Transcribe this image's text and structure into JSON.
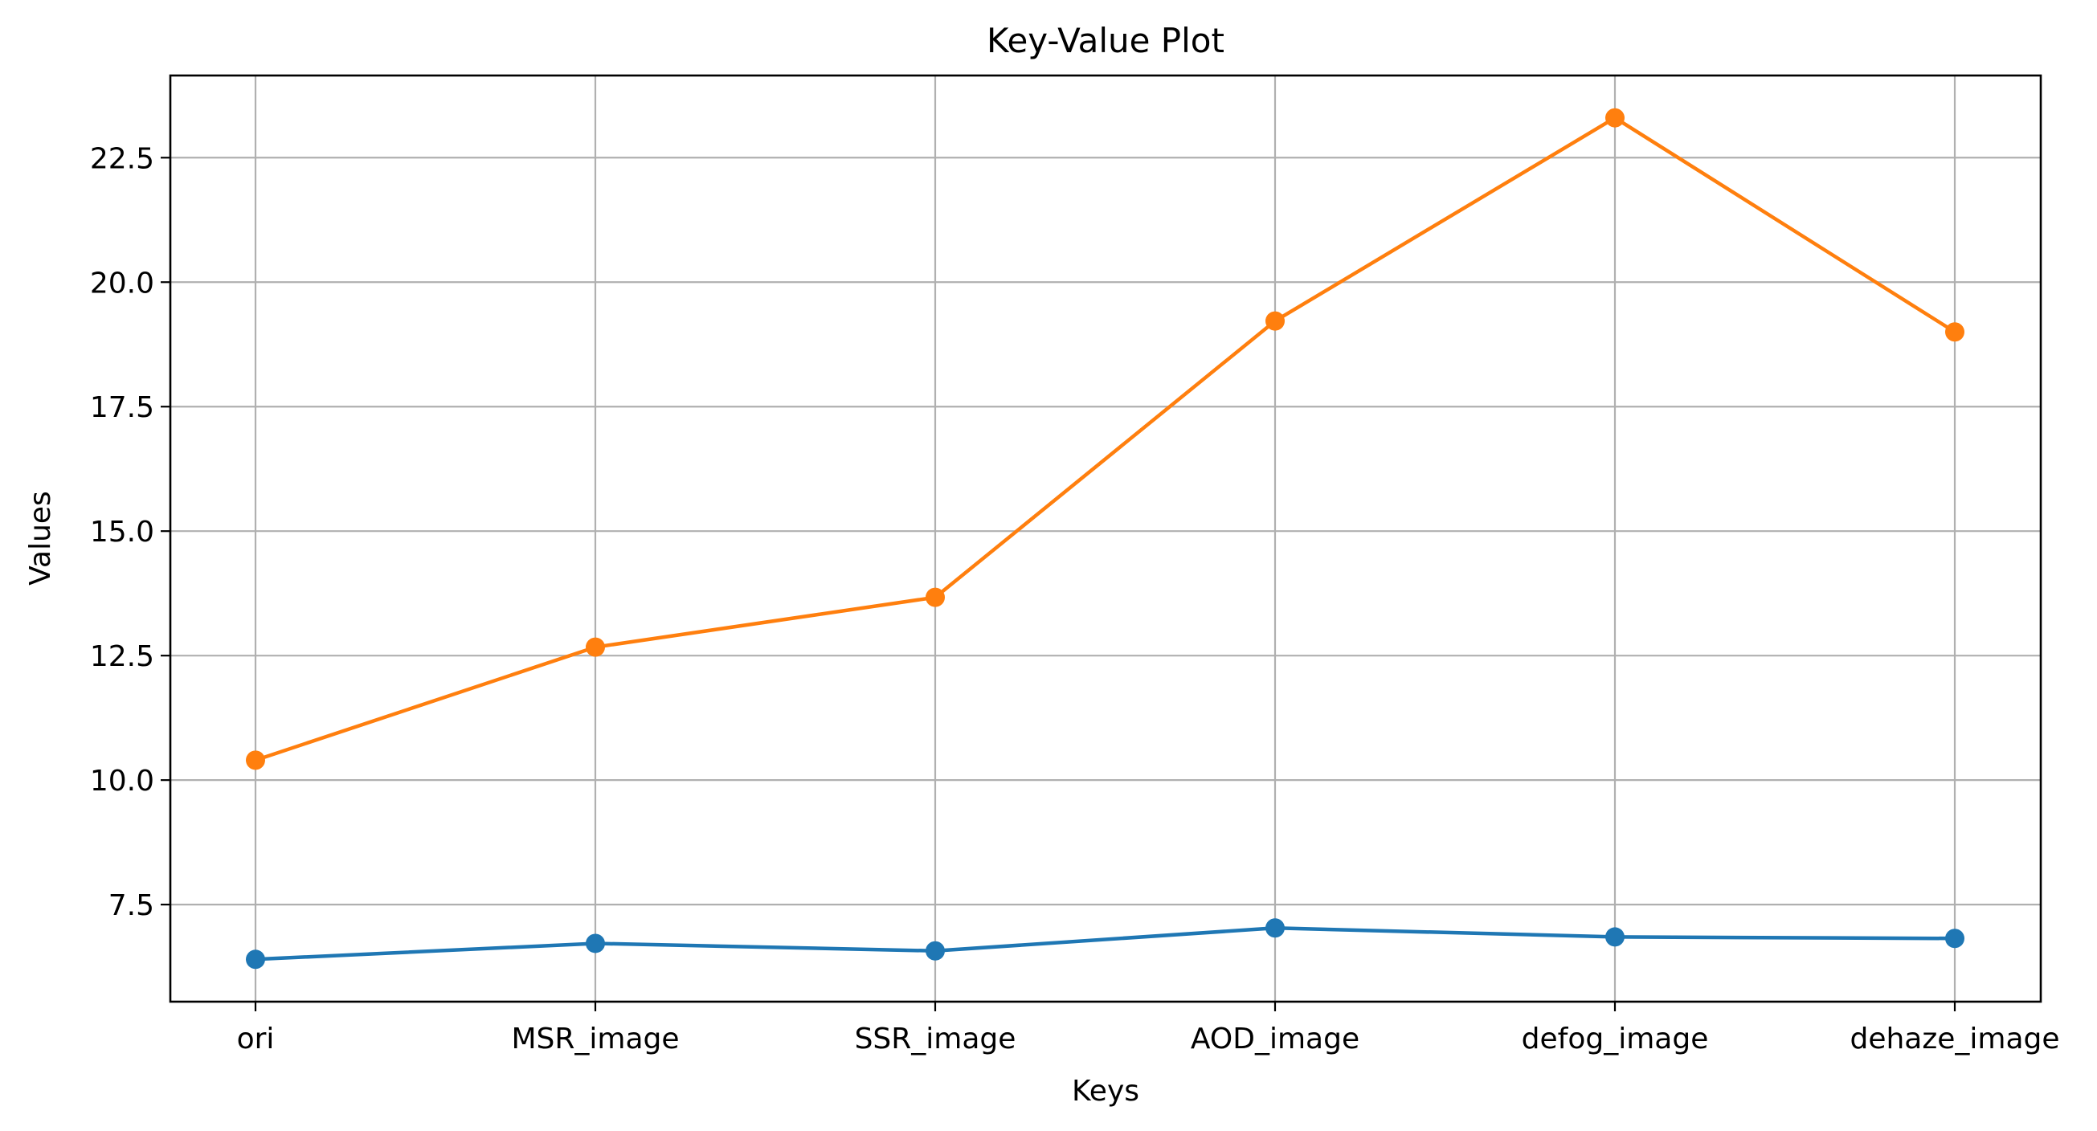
{
  "chart_data": {
    "type": "line",
    "title": "Key-Value Plot",
    "xlabel": "Keys",
    "ylabel": "Values",
    "categories": [
      "ori",
      "MSR_image",
      "SSR_image",
      "AOD_image",
      "defog_image",
      "dehaze_image"
    ],
    "series": [
      {
        "color": "#1f77b4",
        "values": [
          6.4,
          6.72,
          6.57,
          7.03,
          6.85,
          6.82
        ]
      },
      {
        "color": "#ff7f0e",
        "values": [
          10.4,
          12.67,
          13.67,
          19.22,
          23.3,
          19.0
        ]
      }
    ],
    "yticks": [
      7.5,
      10.0,
      12.5,
      15.0,
      17.5,
      20.0,
      22.5
    ],
    "ytick_labels": [
      "7.5",
      "10.0",
      "12.5",
      "15.0",
      "17.5",
      "20.0",
      "22.5"
    ],
    "ylim": [
      5.55,
      24.15
    ],
    "grid": true,
    "markers": true
  }
}
